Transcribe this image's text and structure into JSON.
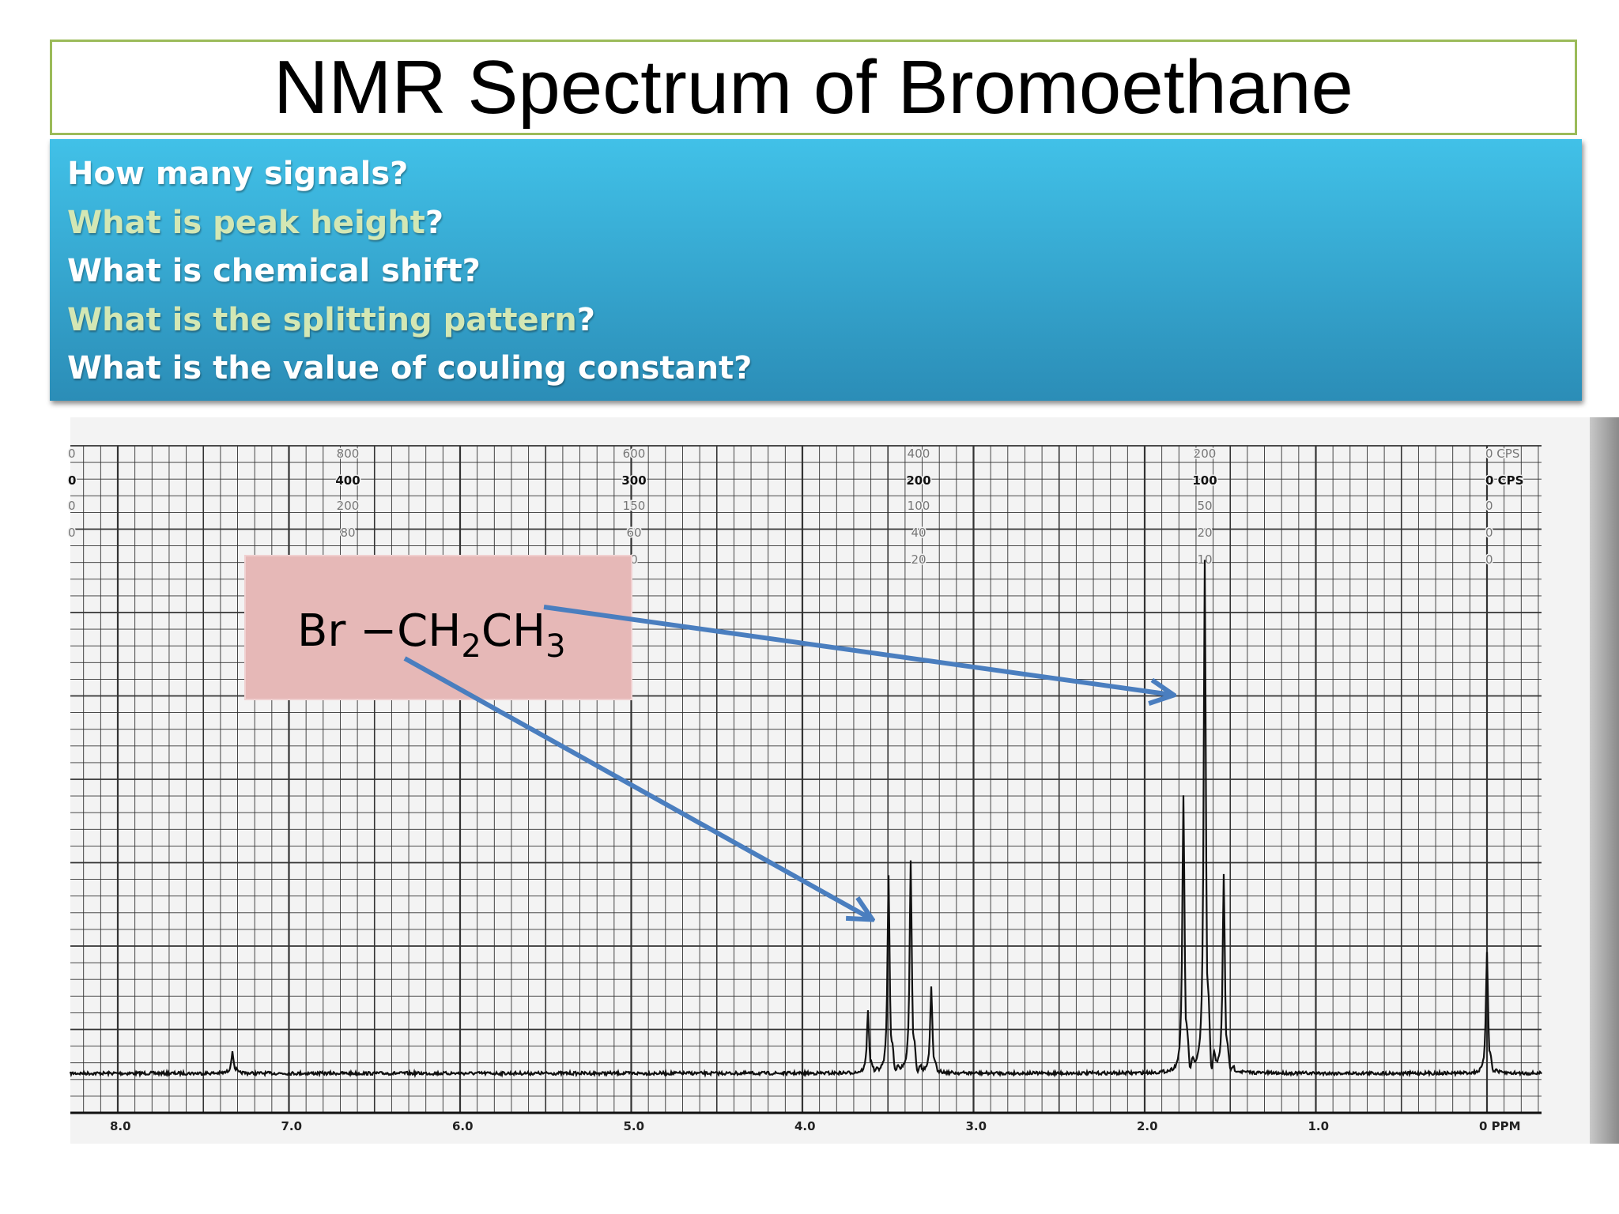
{
  "header": {
    "title": "NMR Spectrum of Bromoethane"
  },
  "questions": [
    {
      "text": "How many signals?"
    },
    {
      "text": "What is peak height",
      "end": "?",
      "highlight": true
    },
    {
      "text": "What is chemical shift?"
    },
    {
      "text": "What is the splitting pattern",
      "end": "?",
      "highlight": true
    },
    {
      "text": "What is the value of couling constant?"
    }
  ],
  "highlight_color": "#d3e7b4",
  "formula": [
    {
      "text": "Br"
    },
    {
      "text": " −CH"
    },
    {
      "text": "2",
      "sub": true
    },
    {
      "text": "CH"
    },
    {
      "text": "3",
      "sub": true
    }
  ],
  "spectrum": {
    "ppm_labels": [
      "8.0",
      "7.0",
      "6.0",
      "5.0",
      "4.0",
      "3.0",
      "2.0",
      "1.0",
      "0 PPM"
    ],
    "cps_columns": [
      [
        "0",
        "0",
        "0",
        "0"
      ],
      [
        "800",
        "400",
        "200",
        "80"
      ],
      [
        "600",
        "300",
        "150",
        "60",
        "0"
      ],
      [
        "400",
        "200",
        "100",
        "40",
        "20"
      ],
      [
        "200",
        "100",
        "50",
        "20",
        "10"
      ],
      [
        "0 CPS",
        "0 CPS",
        "0",
        "0",
        "0"
      ]
    ]
  }
}
